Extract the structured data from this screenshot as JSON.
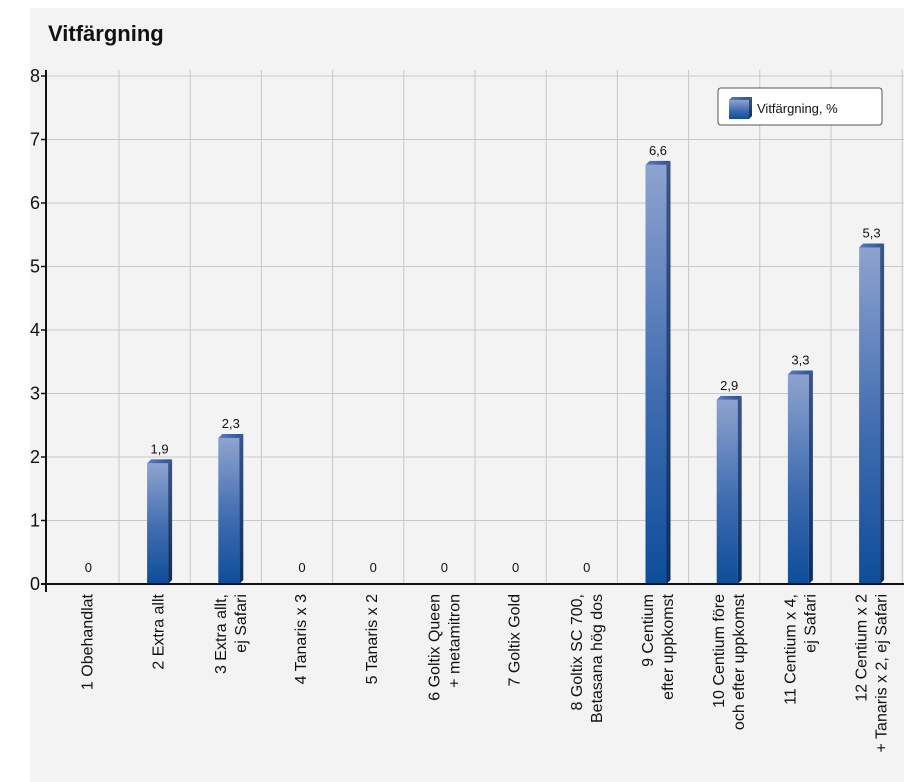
{
  "chart_data": {
    "type": "bar",
    "title": "Vitfärgning",
    "xlabel": "",
    "ylabel": "",
    "ylim": [
      0,
      8
    ],
    "yticks": [
      "0",
      "1",
      "2",
      "3",
      "4",
      "5",
      "6",
      "7",
      "8"
    ],
    "grid": true,
    "legend_position": "top-right",
    "categories": [
      [
        "1 Obehandlat"
      ],
      [
        "2 Extra allt"
      ],
      [
        "3 Extra allt,",
        "ej Safari"
      ],
      [
        "4 Tanaris x 3"
      ],
      [
        "5 Tanaris x 2"
      ],
      [
        "6 Goltix Queen",
        "+ metamitron"
      ],
      [
        "7 Goltix Gold"
      ],
      [
        "8 Goltix SC 700,",
        "Betasana hög dos"
      ],
      [
        "9 Centium",
        "efter uppkomst"
      ],
      [
        "10 Centium före",
        "och efter uppkomst"
      ],
      [
        "11 Centium x 4,",
        "ej Safari"
      ],
      [
        "12 Centium x 2",
        "+ Tanaris x 2, ej Safari"
      ]
    ],
    "series": [
      {
        "name": "Vitfärgning, %",
        "values": [
          0,
          1.9,
          2.3,
          0,
          0,
          0,
          0,
          0,
          6.6,
          2.9,
          3.3,
          5.3
        ],
        "labels": [
          "0",
          "1,9",
          "2,3",
          "0",
          "0",
          "0",
          "0",
          "0",
          "6,6",
          "2,9",
          "3,3",
          "5,3"
        ],
        "color": "#2a5ea8"
      }
    ]
  }
}
